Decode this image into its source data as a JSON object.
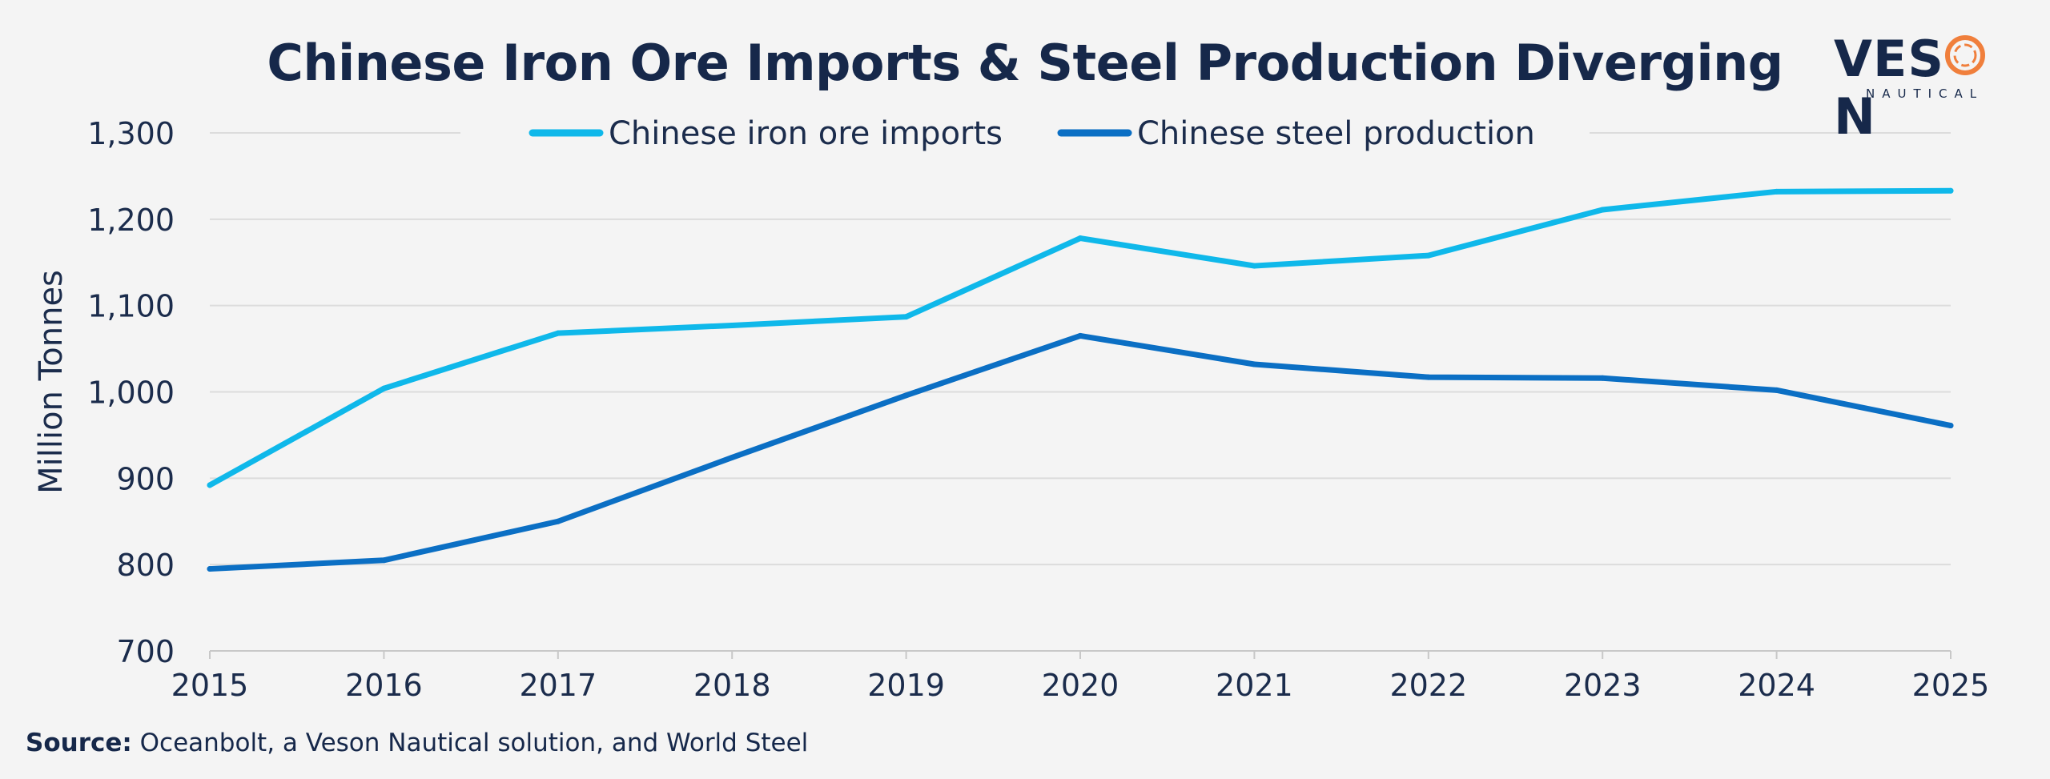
{
  "chart_data": {
    "type": "line",
    "title": "Chinese Iron Ore Imports & Steel Production Diverging",
    "xlabel": "",
    "ylabel": "Million Tonnes",
    "x": [
      "2015",
      "2016",
      "2017",
      "2018",
      "2019",
      "2020",
      "2021",
      "2022",
      "2023",
      "2024",
      "2025"
    ],
    "ylim": [
      700,
      1300
    ],
    "yticks": [
      700,
      800,
      900,
      1000,
      1100,
      1200,
      1300
    ],
    "ytick_labels": [
      "700",
      "800",
      "900",
      "1,000",
      "1,100",
      "1,200",
      "1,300"
    ],
    "grid": true,
    "legend_position": "top-center",
    "series": [
      {
        "name": "Chinese iron ore imports",
        "color": "#0fb8ea",
        "values": [
          892,
          1004,
          1068,
          1077,
          1087,
          1178,
          1146,
          1158,
          1211,
          1232,
          1233
        ]
      },
      {
        "name": "Chinese steel production",
        "color": "#0b6fc4",
        "values": [
          795,
          805,
          850,
          924,
          996,
          1065,
          1032,
          1017,
          1016,
          1002,
          961
        ]
      }
    ]
  },
  "logo": {
    "word_prefix": "VES",
    "word_o": "O",
    "word_suffix": "N",
    "subtext": "NAUTICAL",
    "accent_color": "#f07f3c"
  },
  "source": {
    "label": "Source:",
    "text": "Oceanbolt, a Veson Nautical solution, and World Steel"
  }
}
